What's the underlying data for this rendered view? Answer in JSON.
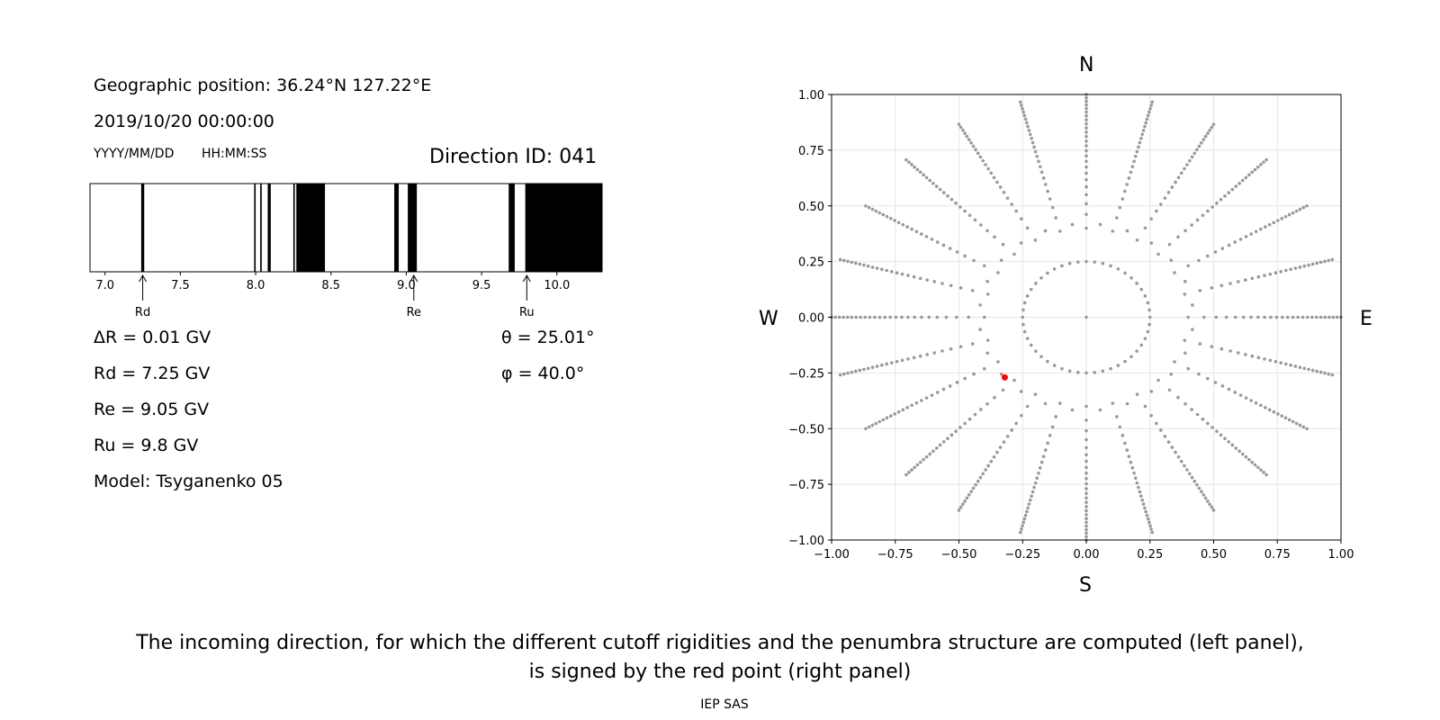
{
  "info": {
    "geo_position": "Geographic position: 36.24°N 127.22°E",
    "datetime": "2019/10/20 00:00:00",
    "date_format": "YYYY/MM/DD",
    "time_format": "HH:MM:SS",
    "direction_id": "Direction ID: 041",
    "delta_r": "ΔR = 0.01 GV",
    "rd": "Rd = 7.25 GV",
    "re": "Re = 9.05 GV",
    "ru": "Ru = 9.8 GV",
    "model": "Model: Tsyganenko 05",
    "theta": "θ = 25.01°",
    "phi": "φ = 40.0°"
  },
  "compass": {
    "n": "N",
    "s": "S",
    "w": "W",
    "e": "E"
  },
  "caption": {
    "line1": "The incoming direction, for which the different cutoff rigidities and the penumbra structure are computed (left panel),",
    "line2": "is signed by the red point (right panel)",
    "footer": "IEP SAS"
  },
  "chart_data": [
    {
      "type": "bar",
      "name": "penumbra",
      "xlim": [
        6.9,
        10.3
      ],
      "xticks": [
        7.0,
        7.5,
        8.0,
        8.5,
        9.0,
        9.5,
        10.0
      ],
      "xtick_labels": [
        "7.0",
        "7.5",
        "8.0",
        "8.5",
        "9.0",
        "9.5",
        "10.0"
      ],
      "forbidden_bands": [
        [
          7.24,
          7.26
        ],
        [
          7.99,
          8.0
        ],
        [
          8.03,
          8.04
        ],
        [
          8.08,
          8.1
        ],
        [
          8.25,
          8.26
        ],
        [
          8.27,
          8.46
        ],
        [
          8.92,
          8.95
        ],
        [
          9.01,
          9.07
        ],
        [
          9.68,
          9.72
        ],
        [
          9.79,
          10.3
        ]
      ],
      "markers": [
        {
          "label": "Rd",
          "value": 7.25
        },
        {
          "label": "Re",
          "value": 9.05
        },
        {
          "label": "Ru",
          "value": 9.8
        }
      ]
    },
    {
      "type": "scatter",
      "name": "directions",
      "xlim": [
        -1.0,
        1.0
      ],
      "ylim": [
        -1.0,
        1.0
      ],
      "xticks": [
        -1.0,
        -0.75,
        -0.5,
        -0.25,
        0.0,
        0.25,
        0.5,
        0.75,
        1.0
      ],
      "xtick_labels": [
        "−1.00",
        "−0.75",
        "−0.50",
        "−0.25",
        "0.00",
        "0.25",
        "0.50",
        "0.75",
        "1.00"
      ],
      "yticks": [
        1.0,
        0.75,
        0.5,
        0.25,
        0.0,
        -0.25,
        -0.5,
        -0.75,
        -1.0
      ],
      "ytick_labels": [
        "1.00",
        "0.75",
        "0.50",
        "0.25",
        "0.00",
        "−0.25",
        "−0.50",
        "−0.75",
        "−1.00"
      ],
      "grid": true,
      "azimuth_step_deg": 15,
      "radial_samples": 25,
      "inner_circle_radius": 0.25,
      "inner_circle_points": 48,
      "highlight_point": {
        "x": -0.32,
        "y": -0.27
      },
      "point_color": "#999999",
      "highlight_color": "#ff0000"
    }
  ]
}
